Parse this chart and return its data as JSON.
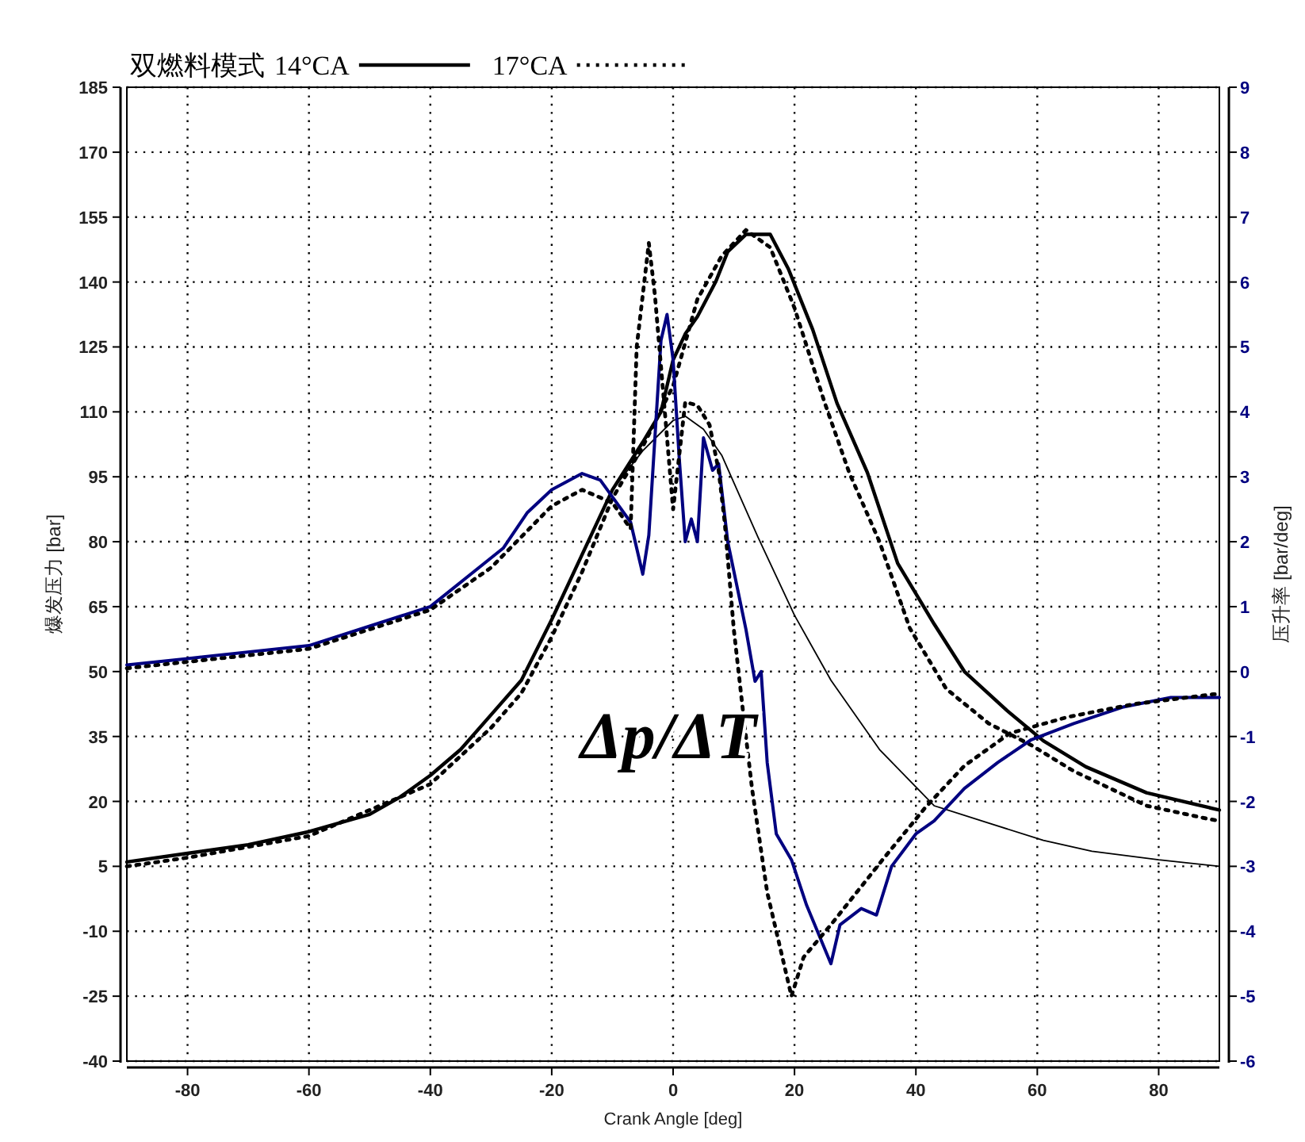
{
  "chart_data": {
    "type": "line",
    "legend_title": "双燃料模式",
    "xlabel": "Crank Angle [deg]",
    "ylabel": "爆发压力 [bar]",
    "y2label": "压升率 [bar/deg]",
    "annotations": [
      "Δp/ΔT"
    ],
    "xlim": [
      -90,
      90
    ],
    "xticks": [
      -80,
      -60,
      -40,
      -20,
      0,
      20,
      40,
      60,
      80
    ],
    "ylim": [
      -40,
      185
    ],
    "yticks": [
      -40,
      -25,
      -10,
      5,
      20,
      35,
      50,
      65,
      80,
      95,
      110,
      125,
      140,
      155,
      170,
      185
    ],
    "y2lim": [
      -6,
      9
    ],
    "y2ticks": [
      -6,
      -5,
      -4,
      -3,
      -2,
      -1,
      0,
      1,
      2,
      3,
      4,
      5,
      6,
      7,
      8,
      9
    ],
    "grid": true,
    "legend": "top left",
    "series": [
      {
        "name": "14°CA",
        "color": "#000000",
        "line_style": "solid",
        "x": [
          -90,
          -80,
          -70,
          -60,
          -50,
          -45,
          -40,
          -35,
          -30,
          -25,
          -20,
          -15,
          -10,
          -5,
          -2,
          0,
          2,
          4,
          7,
          9,
          12,
          16,
          19,
          23,
          27,
          32,
          37,
          43,
          48,
          55,
          61,
          68,
          78,
          90
        ],
        "values": [
          6,
          8,
          10,
          13,
          17,
          21,
          26,
          32,
          40,
          48,
          62,
          77,
          92,
          103,
          110,
          122,
          128,
          132,
          140,
          147,
          151,
          151,
          143,
          129,
          112,
          96,
          75,
          61,
          50,
          41,
          34,
          28,
          22,
          18
        ]
      },
      {
        "name": "17°CA",
        "color": "#000000",
        "line_style": "dotted",
        "x": [
          -90,
          -80,
          -60,
          -40,
          -30,
          -25,
          -20,
          -15,
          -10,
          -5,
          0,
          4,
          8,
          12,
          16,
          20,
          25,
          29,
          34,
          39,
          45,
          52,
          59,
          66,
          78,
          88,
          90
        ],
        "values": [
          5,
          7,
          12,
          24,
          37,
          45,
          58,
          73,
          90,
          102,
          116,
          136,
          146,
          152,
          148,
          134,
          112,
          96,
          80,
          60,
          46,
          38,
          33,
          27,
          19,
          16,
          15.5
        ]
      },
      {
        "color": "#000000",
        "line_style": "solid",
        "x": [
          -90,
          -80,
          -70,
          -60,
          -50,
          -45,
          -40,
          -35,
          -30,
          -25,
          -20,
          -15,
          -10,
          -5,
          0,
          2,
          5,
          8,
          14,
          20,
          26,
          34,
          43,
          52,
          61,
          69,
          80,
          90
        ],
        "values": [
          6,
          8,
          10,
          13,
          17,
          21,
          26,
          32,
          40,
          48,
          62,
          77,
          92,
          101,
          108,
          109,
          106,
          100,
          81,
          63,
          48,
          32,
          19,
          15,
          11,
          8.5,
          6.5,
          5
        ]
      },
      {
        "color": "#000080",
        "line_style": "solid",
        "axis": "y2",
        "x": [
          -90,
          -80,
          -60,
          -50,
          -40,
          -28,
          -24,
          -20,
          -15,
          -12,
          -7,
          -5,
          -4,
          -2,
          -1,
          0,
          1,
          2,
          3,
          4,
          5,
          6.5,
          7.5,
          9,
          12,
          13.5,
          14.5,
          15.5,
          17,
          19.5,
          22,
          26,
          27.5,
          31,
          33.5,
          36,
          40,
          43,
          48,
          53.5,
          59,
          66,
          74,
          82,
          89,
          90
        ],
        "values": [
          0.1,
          0.2,
          0.4,
          0.7,
          1.0,
          1.9,
          2.45,
          2.8,
          3.05,
          2.95,
          2.3,
          1.5,
          2.1,
          5.1,
          5.5,
          4.8,
          3.3,
          2.0,
          2.35,
          2.0,
          3.6,
          3.1,
          3.2,
          2.0,
          0.65,
          -0.15,
          0,
          -1.4,
          -2.5,
          -2.9,
          -3.6,
          -4.5,
          -3.9,
          -3.65,
          -3.75,
          -3.0,
          -2.5,
          -2.3,
          -1.8,
          -1.4,
          -1.05,
          -0.8,
          -0.55,
          -0.4,
          -0.4,
          -0.4
        ]
      },
      {
        "color": "#000000",
        "line_style": "dotted",
        "axis": "y2",
        "x": [
          -90,
          -60,
          -40,
          -30,
          -20,
          -15,
          -10,
          -7,
          -6,
          -4,
          -3,
          0,
          2,
          4,
          6,
          7.5,
          8.5,
          10,
          11.5,
          13,
          15.5,
          18,
          19.5,
          21.5,
          26,
          34.5,
          41.5,
          48,
          55.5,
          65,
          76,
          89,
          90
        ],
        "values": [
          0.05,
          0.35,
          0.95,
          1.6,
          2.55,
          2.8,
          2.6,
          2.2,
          5.0,
          6.6,
          5.8,
          2.5,
          4.15,
          4.1,
          3.8,
          3.1,
          2.3,
          0.65,
          -0.6,
          -1.8,
          -3.4,
          -4.4,
          -5.0,
          -4.4,
          -3.9,
          -2.9,
          -2.1,
          -1.45,
          -0.95,
          -0.7,
          -0.5,
          -0.35,
          -0.35
        ]
      }
    ]
  }
}
